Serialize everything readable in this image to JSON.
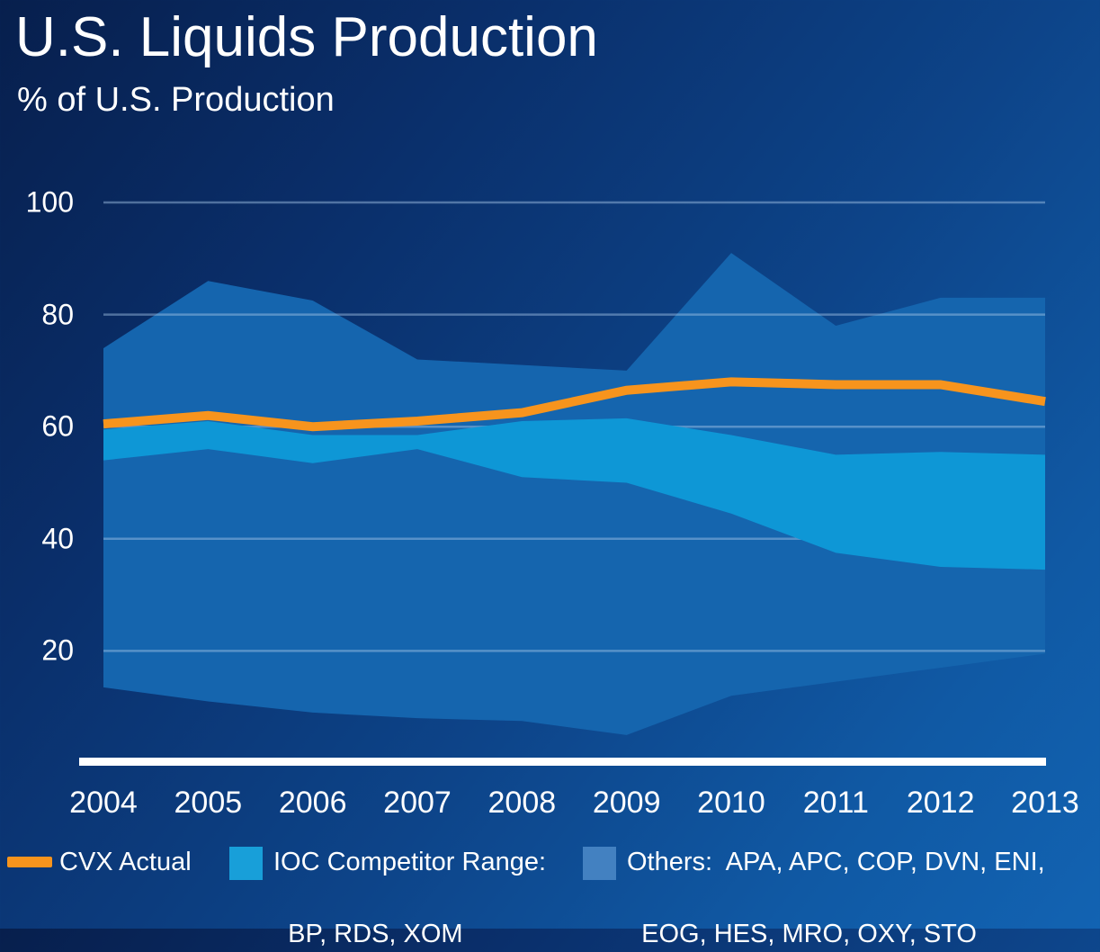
{
  "title": "U.S. Liquids Production",
  "subtitle": "% of U.S. Production",
  "colors": {
    "background_top_left": "#071f4d",
    "background_bottom_right": "#1263b2",
    "text": "#ffffff",
    "gridline": "#a9c8e8",
    "axis_line": "#ffffff",
    "cvx_line": "#f7941d",
    "ioc_band_fill": "#0e97d6",
    "others_band_fill": "#1565ae",
    "ioc_swatch": "#189fd9",
    "others_swatch": "#4381c1"
  },
  "chart_data": {
    "type": "area",
    "title": "U.S. Liquids Production",
    "subtitle": "% of U.S. Production",
    "x": [
      2004,
      2005,
      2006,
      2007,
      2008,
      2009,
      2010,
      2011,
      2012,
      2013
    ],
    "series": [
      {
        "name": "Others: APA, APC, COP, DVN, ENI, EOG, HES, MRO, OXY, STO",
        "type": "band",
        "upper": [
          74,
          86,
          82.5,
          72,
          71,
          70,
          91,
          78,
          83,
          83
        ],
        "lower": [
          13.5,
          11,
          9,
          8,
          7.5,
          5,
          12,
          14.5,
          17,
          19.5
        ],
        "color": "#1565ae"
      },
      {
        "name": "IOC Competitor Range: BP, RDS, XOM",
        "type": "band",
        "upper": [
          59.5,
          61,
          58.5,
          58.5,
          61,
          61.5,
          58.5,
          55,
          55.5,
          55
        ],
        "lower": [
          54,
          56,
          53.5,
          56,
          51,
          50,
          44.5,
          37.5,
          35,
          34.5
        ],
        "color": "#0e97d6"
      },
      {
        "name": "CVX Actual",
        "type": "line",
        "values": [
          60.5,
          62,
          60,
          61,
          62.5,
          66.5,
          68,
          67.5,
          67.5,
          64.5
        ],
        "color": "#f7941d"
      }
    ],
    "xlabel": "",
    "ylabel": "% of U.S. Production",
    "ylim": [
      0,
      100
    ],
    "yticks": [
      20,
      40,
      60,
      80,
      100
    ],
    "xtick_labels": [
      "2004",
      "2005",
      "2006",
      "2007",
      "2008",
      "2009",
      "2010",
      "2011",
      "2012",
      "2013"
    ],
    "grid": true,
    "legend_position": "bottom"
  },
  "legend": {
    "items": [
      {
        "id": "cvx",
        "swatch": "line",
        "color": "#f7941d",
        "lines": [
          "CVX Actual",
          ""
        ]
      },
      {
        "id": "ioc",
        "swatch": "square",
        "color": "#189fd9",
        "lines": [
          "IOC Competitor Range:",
          "BP, RDS, XOM"
        ]
      },
      {
        "id": "others",
        "swatch": "square",
        "color": "#4381c1",
        "lines": [
          "Others:  APA, APC, COP, DVN, ENI,",
          "EOG, HES, MRO, OXY, STO"
        ]
      }
    ]
  }
}
